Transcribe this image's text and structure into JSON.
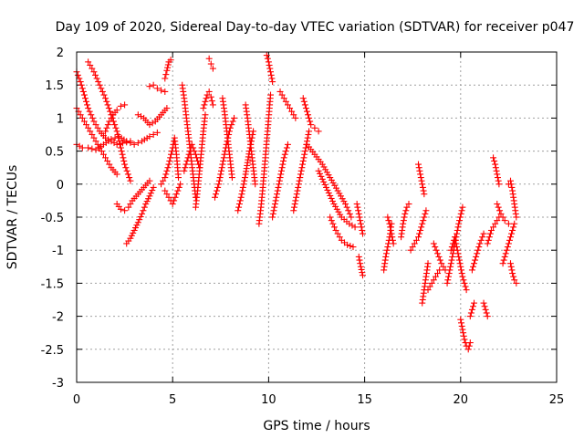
{
  "chart_data": {
    "type": "scatter",
    "title": "Day 109 of 2020, Sidereal Day-to-day VTEC variation (SDTVAR) for receiver p047",
    "xlabel": "GPS time / hours",
    "ylabel": "SDTVAR / TECUs",
    "xlim": [
      0,
      25
    ],
    "ylim": [
      -3,
      2
    ],
    "grid": true,
    "marker": "plus",
    "color": "#ff0000",
    "x_ticks": [
      "0",
      "5",
      "10",
      "15",
      "20",
      "25"
    ],
    "y_ticks": [
      "2",
      "1.5",
      "1",
      "0.5",
      "0",
      "-0.5",
      "-1",
      "-1.5",
      "-2",
      "-2.5",
      "-3"
    ],
    "segments": [
      {
        "x": [
          0.0,
          0.3,
          0.6,
          1.0,
          1.4,
          1.8,
          2.2,
          2.6,
          3.0,
          3.4,
          3.8,
          4.2
        ],
        "y": [
          0.6,
          0.55,
          0.55,
          0.52,
          0.6,
          0.68,
          0.72,
          0.65,
          0.6,
          0.65,
          0.72,
          0.78
        ]
      },
      {
        "x": [
          0.0,
          0.3,
          0.6,
          0.9,
          1.2,
          1.5,
          1.8,
          2.1
        ],
        "y": [
          1.15,
          1.0,
          0.85,
          0.7,
          0.55,
          0.4,
          0.25,
          0.15
        ]
      },
      {
        "x": [
          0.0,
          0.2,
          0.4,
          0.6,
          0.9,
          1.2,
          1.5,
          1.8,
          2.1,
          2.4,
          2.8
        ],
        "y": [
          1.7,
          1.55,
          1.35,
          1.15,
          0.95,
          0.8,
          0.7,
          0.65,
          0.6,
          0.62,
          0.65
        ]
      },
      {
        "x": [
          0.6,
          0.9,
          1.2,
          1.5,
          1.8,
          2.1,
          2.3,
          2.5,
          2.8
        ],
        "y": [
          1.85,
          1.7,
          1.5,
          1.3,
          1.05,
          0.8,
          0.55,
          0.3,
          0.05
        ]
      },
      {
        "x": [
          1.5,
          1.7,
          1.9,
          2.1,
          2.3,
          2.5
        ],
        "y": [
          0.8,
          0.95,
          1.05,
          1.12,
          1.18,
          1.2
        ]
      },
      {
        "x": [
          2.1,
          2.3,
          2.5,
          2.7,
          2.9,
          3.2,
          3.5,
          3.8
        ],
        "y": [
          -0.3,
          -0.38,
          -0.4,
          -0.35,
          -0.25,
          -0.15,
          -0.05,
          0.05
        ]
      },
      {
        "x": [
          2.6,
          2.8,
          3.0,
          3.2,
          3.4,
          3.6,
          3.8,
          4.0
        ],
        "y": [
          -0.9,
          -0.82,
          -0.7,
          -0.58,
          -0.45,
          -0.3,
          -0.18,
          -0.05
        ]
      },
      {
        "x": [
          3.2,
          3.5,
          3.8,
          4.1,
          4.4,
          4.7
        ],
        "y": [
          1.05,
          1.0,
          0.9,
          0.95,
          1.05,
          1.15
        ]
      },
      {
        "x": [
          3.8,
          4.0,
          4.2,
          4.4,
          4.6
        ],
        "y": [
          1.48,
          1.5,
          1.45,
          1.42,
          1.4
        ]
      },
      {
        "x": [
          4.4,
          4.6,
          4.8,
          5.0,
          5.1,
          5.2,
          5.3
        ],
        "y": [
          0.0,
          0.1,
          0.3,
          0.55,
          0.7,
          0.45,
          0.1
        ]
      },
      {
        "x": [
          4.6,
          4.8,
          5.0,
          5.2,
          5.4
        ],
        "y": [
          -0.1,
          -0.2,
          -0.3,
          -0.15,
          0.0
        ]
      },
      {
        "x": [
          4.6,
          4.7,
          4.8,
          4.9
        ],
        "y": [
          1.6,
          1.72,
          1.85,
          1.88
        ]
      },
      {
        "x": [
          5.5,
          5.6,
          5.7,
          5.8,
          5.9,
          6.0,
          6.1,
          6.2
        ],
        "y": [
          1.5,
          1.3,
          1.05,
          0.8,
          0.55,
          0.3,
          0.05,
          -0.2
        ]
      },
      {
        "x": [
          5.6,
          5.8,
          6.0,
          6.2,
          6.4
        ],
        "y": [
          0.2,
          0.4,
          0.6,
          0.45,
          0.25
        ]
      },
      {
        "x": [
          6.2,
          6.3,
          6.4,
          6.5,
          6.6,
          6.7
        ],
        "y": [
          -0.35,
          -0.1,
          0.2,
          0.5,
          0.8,
          1.05
        ]
      },
      {
        "x": [
          6.6,
          6.7,
          6.8,
          6.9,
          7.0,
          7.1
        ],
        "y": [
          1.15,
          1.25,
          1.35,
          1.4,
          1.32,
          1.2
        ]
      },
      {
        "x": [
          6.9,
          7.0,
          7.1
        ],
        "y": [
          1.9,
          1.82,
          1.75
        ]
      },
      {
        "x": [
          7.2,
          7.4,
          7.6,
          7.8,
          8.0,
          8.2
        ],
        "y": [
          -0.2,
          0.0,
          0.3,
          0.6,
          0.85,
          1.0
        ]
      },
      {
        "x": [
          7.6,
          7.7,
          7.8,
          7.9,
          8.0,
          8.1
        ],
        "y": [
          1.3,
          1.1,
          0.85,
          0.6,
          0.35,
          0.1
        ]
      },
      {
        "x": [
          8.4,
          8.6,
          8.8,
          9.0,
          9.2
        ],
        "y": [
          -0.4,
          -0.15,
          0.15,
          0.5,
          0.8
        ]
      },
      {
        "x": [
          8.8,
          8.9,
          9.0,
          9.1,
          9.2,
          9.3
        ],
        "y": [
          1.2,
          1.0,
          0.75,
          0.5,
          0.25,
          0.0
        ]
      },
      {
        "x": [
          9.5,
          9.6,
          9.7,
          9.8,
          9.9,
          10.0,
          10.1
        ],
        "y": [
          -0.6,
          -0.35,
          -0.05,
          0.3,
          0.65,
          1.0,
          1.35
        ]
      },
      {
        "x": [
          9.9,
          10.0,
          10.1,
          10.2
        ],
        "y": [
          1.95,
          1.85,
          1.7,
          1.55
        ]
      },
      {
        "x": [
          10.2,
          10.4,
          10.6,
          10.8,
          11.0
        ],
        "y": [
          -0.5,
          -0.2,
          0.1,
          0.4,
          0.6
        ]
      },
      {
        "x": [
          10.6,
          10.8,
          11.0,
          11.2,
          11.4
        ],
        "y": [
          1.4,
          1.3,
          1.2,
          1.1,
          1.0
        ]
      },
      {
        "x": [
          11.3,
          11.5,
          11.7,
          11.9,
          12.1
        ],
        "y": [
          -0.4,
          -0.1,
          0.2,
          0.5,
          0.8
        ]
      },
      {
        "x": [
          11.8,
          12.0,
          12.2,
          12.4,
          12.6
        ],
        "y": [
          1.3,
          1.1,
          0.9,
          0.85,
          0.8
        ]
      },
      {
        "x": [
          12.0,
          12.4,
          12.8,
          13.2,
          13.6,
          14.0,
          14.3
        ],
        "y": [
          0.6,
          0.45,
          0.3,
          0.1,
          -0.1,
          -0.3,
          -0.5
        ]
      },
      {
        "x": [
          12.6,
          13.0,
          13.4,
          13.8,
          14.2,
          14.5
        ],
        "y": [
          0.2,
          -0.05,
          -0.3,
          -0.5,
          -0.6,
          -0.65
        ]
      },
      {
        "x": [
          13.2,
          13.5,
          13.8,
          14.1,
          14.4
        ],
        "y": [
          -0.5,
          -0.7,
          -0.85,
          -0.92,
          -0.95
        ]
      },
      {
        "x": [
          14.6,
          14.7,
          14.8,
          14.9
        ],
        "y": [
          -0.3,
          -0.45,
          -0.6,
          -0.75
        ]
      },
      {
        "x": [
          14.7,
          14.8,
          14.9
        ],
        "y": [
          -1.1,
          -1.25,
          -1.38
        ]
      },
      {
        "x": [
          16.0,
          16.1,
          16.2,
          16.3,
          16.4
        ],
        "y": [
          -1.3,
          -1.1,
          -0.95,
          -0.8,
          -0.6
        ]
      },
      {
        "x": [
          16.2,
          16.3,
          16.4,
          16.5
        ],
        "y": [
          -0.5,
          -0.6,
          -0.75,
          -0.9
        ]
      },
      {
        "x": [
          16.9,
          17.0,
          17.1,
          17.2,
          17.3
        ],
        "y": [
          -0.8,
          -0.6,
          -0.45,
          -0.35,
          -0.3
        ]
      },
      {
        "x": [
          17.4,
          17.6,
          17.8,
          18.0,
          18.2
        ],
        "y": [
          -1.0,
          -0.9,
          -0.8,
          -0.6,
          -0.4
        ]
      },
      {
        "x": [
          17.8,
          17.9,
          18.0,
          18.1
        ],
        "y": [
          0.3,
          0.15,
          0.0,
          -0.15
        ]
      },
      {
        "x": [
          18.0,
          18.1,
          18.2,
          18.3
        ],
        "y": [
          -1.8,
          -1.6,
          -1.4,
          -1.2
        ]
      },
      {
        "x": [
          18.3,
          18.5,
          18.7,
          18.9
        ],
        "y": [
          -1.6,
          -1.5,
          -1.4,
          -1.3
        ]
      },
      {
        "x": [
          18.6,
          18.8,
          19.0,
          19.2
        ],
        "y": [
          -0.9,
          -1.05,
          -1.2,
          -1.3
        ]
      },
      {
        "x": [
          19.3,
          19.5,
          19.7,
          19.9,
          20.1
        ],
        "y": [
          -1.5,
          -1.2,
          -0.9,
          -0.6,
          -0.35
        ]
      },
      {
        "x": [
          19.5,
          19.7,
          19.9,
          20.1,
          20.3
        ],
        "y": [
          -1.0,
          -0.8,
          -1.1,
          -1.4,
          -1.6
        ]
      },
      {
        "x": [
          20.0,
          20.1,
          20.2,
          20.3,
          20.4,
          20.5
        ],
        "y": [
          -2.05,
          -2.2,
          -2.35,
          -2.45,
          -2.5,
          -2.4
        ]
      },
      {
        "x": [
          20.5,
          20.6,
          20.7
        ],
        "y": [
          -2.0,
          -1.9,
          -1.8
        ]
      },
      {
        "x": [
          20.6,
          20.8,
          21.0,
          21.2
        ],
        "y": [
          -1.3,
          -1.1,
          -0.9,
          -0.75
        ]
      },
      {
        "x": [
          21.2,
          21.3,
          21.4
        ],
        "y": [
          -1.8,
          -1.9,
          -2.0
        ]
      },
      {
        "x": [
          21.4,
          21.6,
          21.8,
          22.0
        ],
        "y": [
          -0.9,
          -0.7,
          -0.6,
          -0.5
        ]
      },
      {
        "x": [
          21.7,
          21.8,
          21.9,
          22.0
        ],
        "y": [
          0.4,
          0.3,
          0.15,
          0.0
        ]
      },
      {
        "x": [
          21.9,
          22.1,
          22.3,
          22.5
        ],
        "y": [
          -0.3,
          -0.45,
          -0.55,
          -0.6
        ]
      },
      {
        "x": [
          22.2,
          22.4,
          22.6,
          22.8
        ],
        "y": [
          -1.2,
          -1.0,
          -0.8,
          -0.6
        ]
      },
      {
        "x": [
          22.5,
          22.6,
          22.7,
          22.8,
          22.9
        ],
        "y": [
          0.0,
          0.05,
          -0.1,
          -0.3,
          -0.5
        ]
      },
      {
        "x": [
          22.6,
          22.7,
          22.8,
          22.9
        ],
        "y": [
          -1.2,
          -1.35,
          -1.45,
          -1.5
        ]
      }
    ]
  }
}
